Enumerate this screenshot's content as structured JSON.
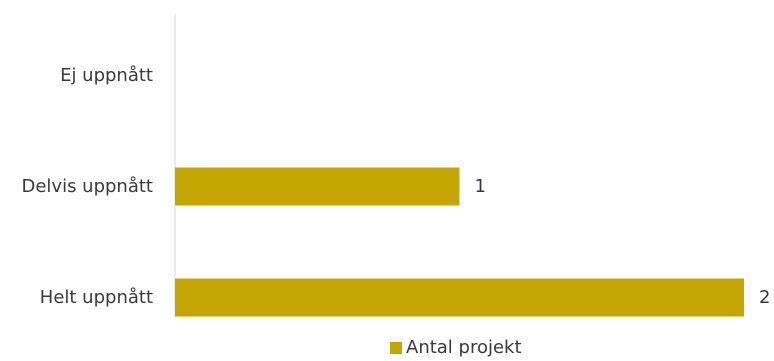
{
  "chart_data": {
    "type": "bar",
    "orientation": "horizontal",
    "categories": [
      "Ej uppnått",
      "Delvis uppnått",
      "Helt uppnått"
    ],
    "series": [
      {
        "name": "Antal projekt",
        "values": [
          0,
          1,
          2
        ],
        "color": "#c4a603"
      }
    ],
    "xlim": [
      0,
      2
    ],
    "grid": false,
    "legend": "bottom",
    "data_labels": [
      "",
      "1",
      "2"
    ]
  }
}
